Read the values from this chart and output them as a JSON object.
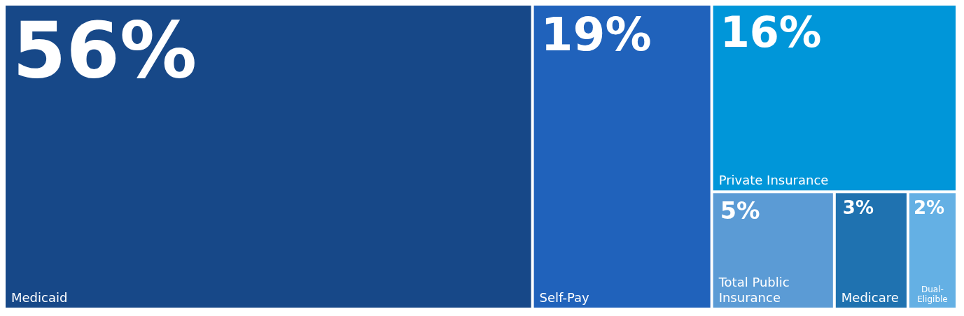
{
  "chart_data": {
    "type": "other",
    "categories": [
      "Medicaid",
      "Self-Pay",
      "Private Insurance",
      "Total Public Insurance",
      "Medicare",
      "Dual-Eligible"
    ],
    "values": [
      56,
      19,
      16,
      5,
      3,
      2
    ],
    "value_labels": [
      "56%",
      "19%",
      "16%",
      "5%",
      "3%",
      "2%"
    ],
    "colors": [
      "#174888",
      "#2062bb",
      "#0096d9",
      "#5b9bd5",
      "#1f72b0",
      "#64b0e4"
    ]
  }
}
